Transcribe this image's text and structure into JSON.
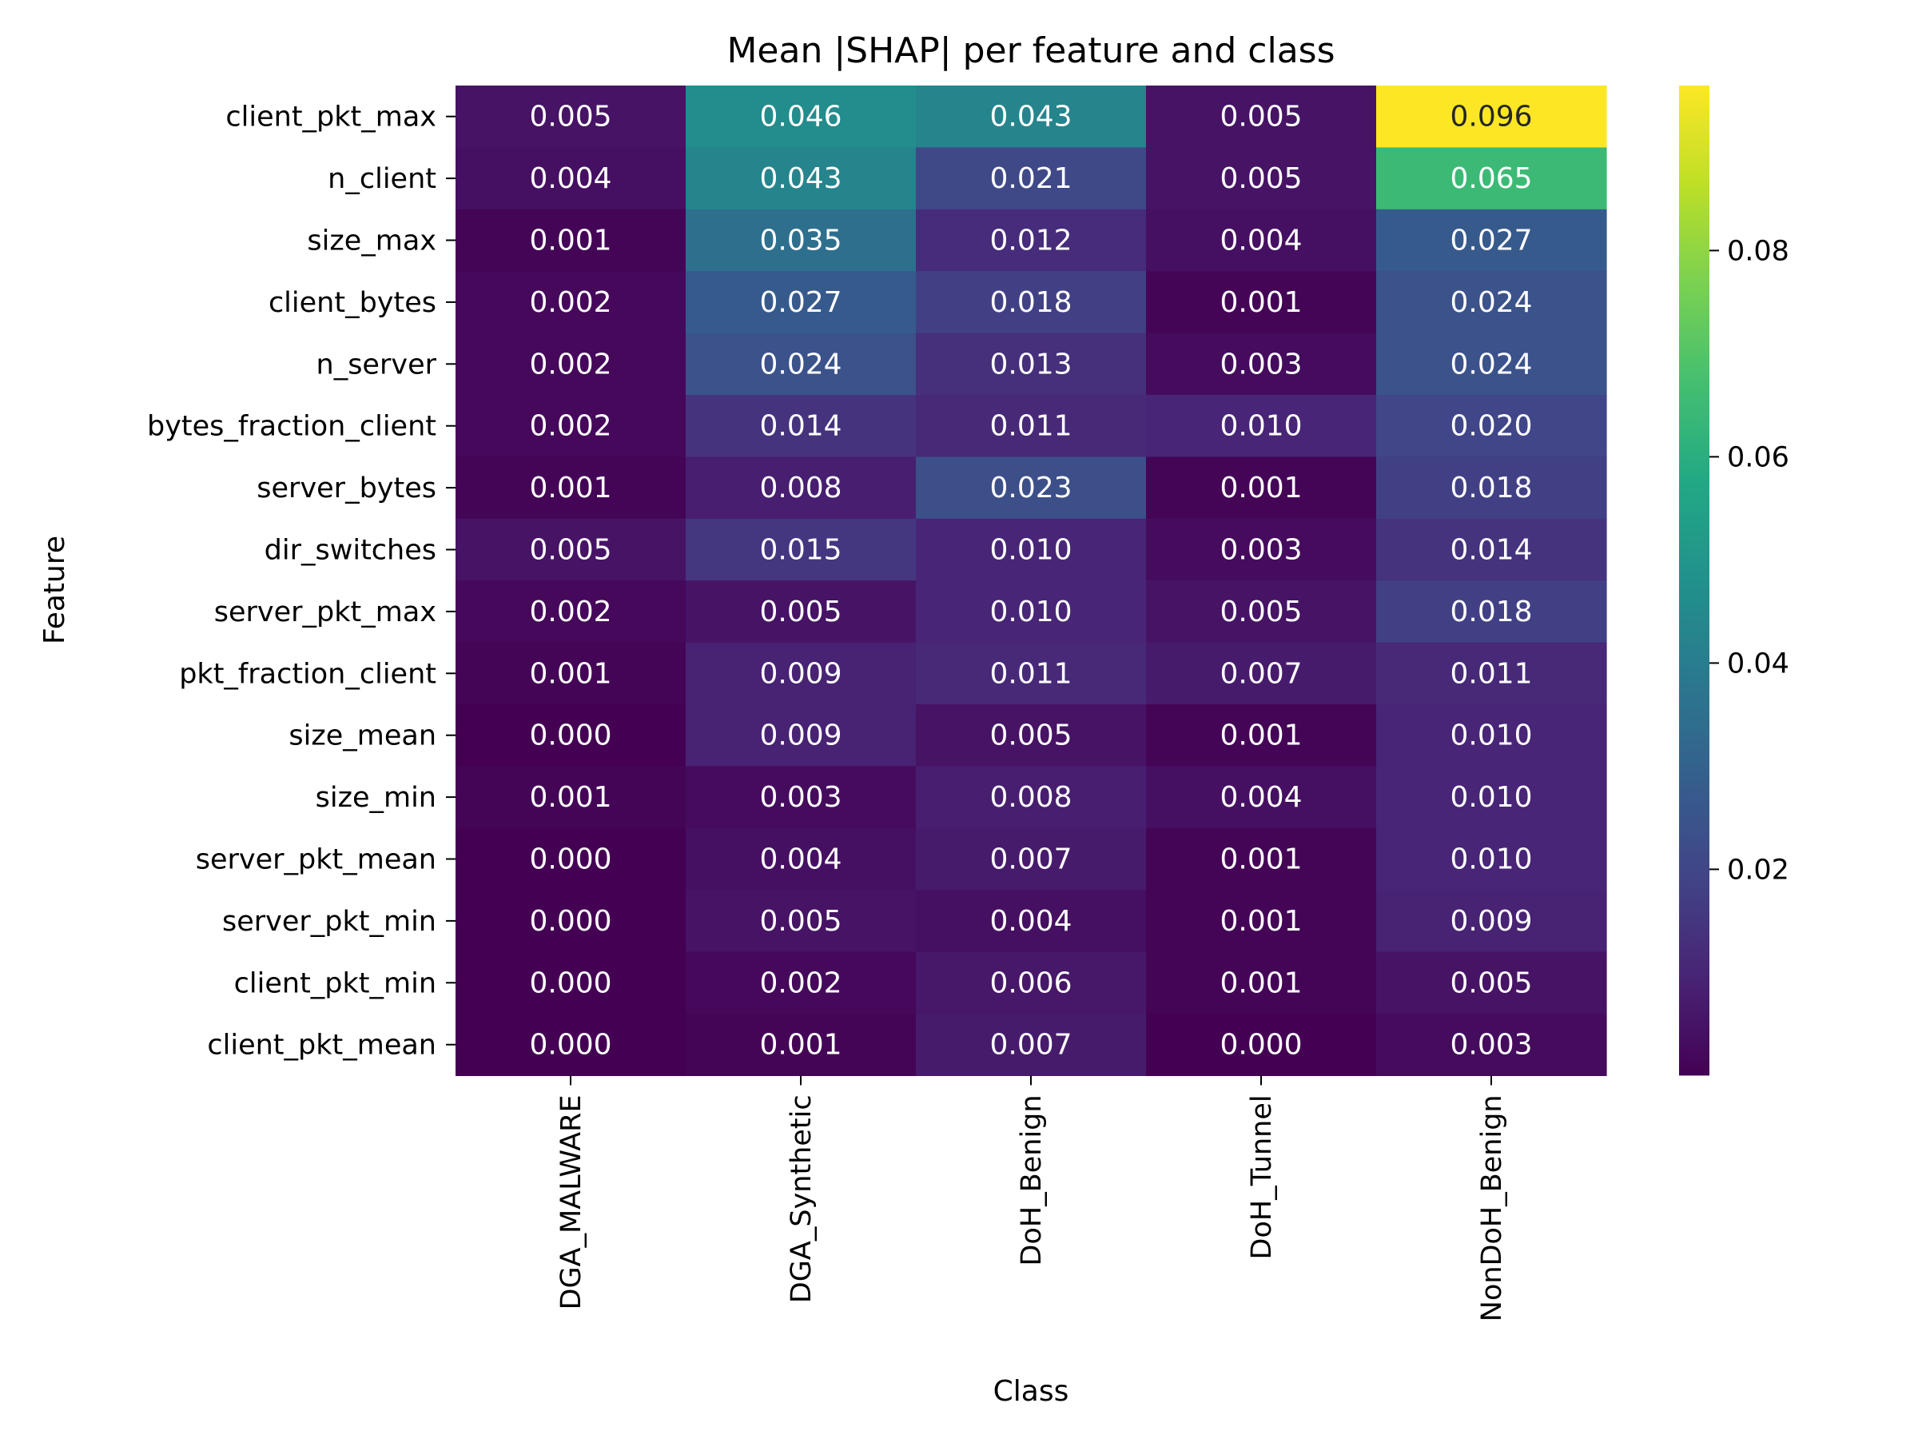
{
  "chart_data": {
    "type": "heatmap",
    "title": "Mean |SHAP| per feature and class",
    "xlabel": "Class",
    "ylabel": "Feature",
    "colormap": "viridis",
    "colorbar": {
      "vmin": 0.0,
      "vmax": 0.096,
      "ticks": [
        0.02,
        0.04,
        0.06,
        0.08
      ],
      "tick_labels": [
        "0.02",
        "0.04",
        "0.06",
        "0.08"
      ]
    },
    "x_categories": [
      "DGA_MALWARE",
      "DGA_Synthetic",
      "DoH_Benign",
      "DoH_Tunnel",
      "NonDoH_Benign"
    ],
    "y_categories": [
      "client_pkt_max",
      "n_client",
      "size_max",
      "client_bytes",
      "n_server",
      "bytes_fraction_client",
      "server_bytes",
      "dir_switches",
      "server_pkt_max",
      "pkt_fraction_client",
      "size_mean",
      "size_min",
      "server_pkt_mean",
      "server_pkt_min",
      "client_pkt_min",
      "client_pkt_mean"
    ],
    "values": [
      [
        0.005,
        0.046,
        0.043,
        0.005,
        0.096
      ],
      [
        0.004,
        0.043,
        0.021,
        0.005,
        0.065
      ],
      [
        0.001,
        0.035,
        0.012,
        0.004,
        0.027
      ],
      [
        0.002,
        0.027,
        0.018,
        0.001,
        0.024
      ],
      [
        0.002,
        0.024,
        0.013,
        0.003,
        0.024
      ],
      [
        0.002,
        0.014,
        0.011,
        0.01,
        0.02
      ],
      [
        0.001,
        0.008,
        0.023,
        0.001,
        0.018
      ],
      [
        0.005,
        0.015,
        0.01,
        0.003,
        0.014
      ],
      [
        0.002,
        0.005,
        0.01,
        0.005,
        0.018
      ],
      [
        0.001,
        0.009,
        0.011,
        0.007,
        0.011
      ],
      [
        0.0,
        0.009,
        0.005,
        0.001,
        0.01
      ],
      [
        0.001,
        0.003,
        0.008,
        0.004,
        0.01
      ],
      [
        0.0,
        0.004,
        0.007,
        0.001,
        0.01
      ],
      [
        0.0,
        0.005,
        0.004,
        0.001,
        0.009
      ],
      [
        0.0,
        0.002,
        0.006,
        0.001,
        0.005
      ],
      [
        0.0,
        0.001,
        0.007,
        0.0,
        0.003
      ]
    ],
    "cell_labels": [
      [
        "0.005",
        "0.046",
        "0.043",
        "0.005",
        "0.096"
      ],
      [
        "0.004",
        "0.043",
        "0.021",
        "0.005",
        "0.065"
      ],
      [
        "0.001",
        "0.035",
        "0.012",
        "0.004",
        "0.027"
      ],
      [
        "0.002",
        "0.027",
        "0.018",
        "0.001",
        "0.024"
      ],
      [
        "0.002",
        "0.024",
        "0.013",
        "0.003",
        "0.024"
      ],
      [
        "0.002",
        "0.014",
        "0.011",
        "0.010",
        "0.020"
      ],
      [
        "0.001",
        "0.008",
        "0.023",
        "0.001",
        "0.018"
      ],
      [
        "0.005",
        "0.015",
        "0.010",
        "0.003",
        "0.014"
      ],
      [
        "0.002",
        "0.005",
        "0.010",
        "0.005",
        "0.018"
      ],
      [
        "0.001",
        "0.009",
        "0.011",
        "0.007",
        "0.011"
      ],
      [
        "0.000",
        "0.009",
        "0.005",
        "0.001",
        "0.010"
      ],
      [
        "0.001",
        "0.003",
        "0.008",
        "0.004",
        "0.010"
      ],
      [
        "0.000",
        "0.004",
        "0.007",
        "0.001",
        "0.010"
      ],
      [
        "0.000",
        "0.005",
        "0.004",
        "0.001",
        "0.009"
      ],
      [
        "0.000",
        "0.002",
        "0.006",
        "0.001",
        "0.005"
      ],
      [
        "0.000",
        "0.001",
        "0.007",
        "0.000",
        "0.003"
      ]
    ]
  }
}
